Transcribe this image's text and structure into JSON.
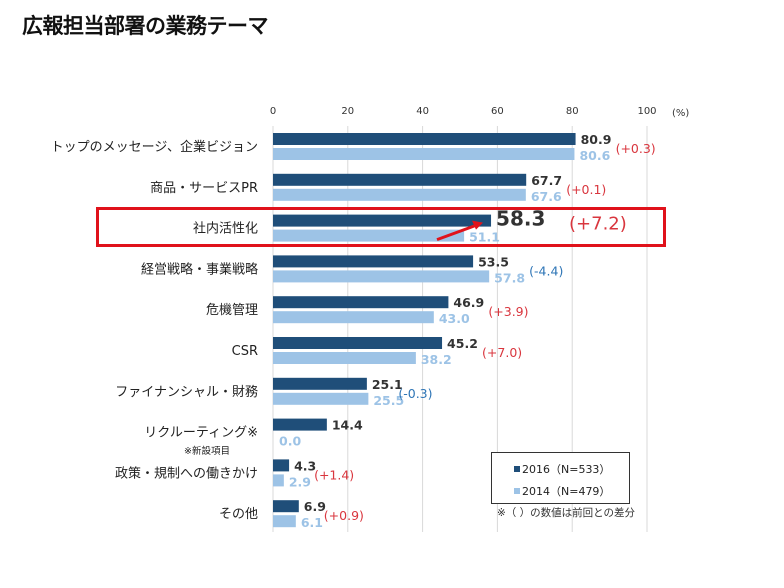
{
  "title": "広報担当部署の業務テーマ",
  "chart_data": {
    "type": "bar",
    "orientation": "horizontal",
    "categories": [
      "トップのメッセージ、企業ビジョン",
      "商品・サービスPR",
      "社内活性化",
      "経営戦略・事業戦略",
      "危機管理",
      "CSR",
      "ファイナンシャル・財務",
      "リクルーティング※",
      "政策・規制への働きかけ",
      "その他"
    ],
    "series": [
      {
        "name": "2016（N=533）",
        "color": "#1f4e79",
        "values": [
          80.9,
          67.7,
          58.3,
          53.5,
          46.9,
          45.2,
          25.1,
          14.4,
          4.3,
          6.9
        ]
      },
      {
        "name": "2014（N=479）",
        "color": "#9dc3e6",
        "values": [
          80.6,
          67.6,
          51.1,
          57.8,
          43.0,
          38.2,
          25.5,
          0.0,
          2.9,
          6.1
        ]
      }
    ],
    "diff_labels": [
      "(+0.3)",
      "(+0.1)",
      "(+7.2)",
      "(-4.4)",
      "(+3.9)",
      "(+7.0)",
      "(-0.3)",
      "",
      "(+1.4)",
      "(+0.9)"
    ],
    "xlim": [
      0,
      100
    ],
    "xticks": [
      0,
      20,
      40,
      60,
      80,
      100
    ],
    "unit": "(%)",
    "grid": true,
    "legend": "bottom-right",
    "highlight_category": "社内活性化",
    "colors": {
      "positive_diff": "#d9363e",
      "negative_diff": "#2e75b6",
      "highlight": "#e0121b"
    }
  },
  "footnote_sub": "※新設項目",
  "note": "※（ ）の数値は前回との差分"
}
